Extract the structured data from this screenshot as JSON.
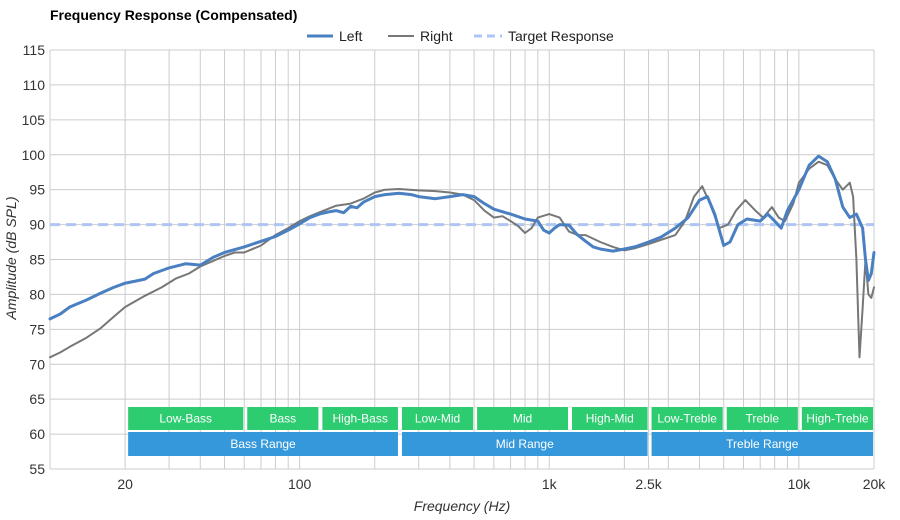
{
  "chart_data": {
    "type": "line",
    "title": "Frequency Response (Compensated)",
    "xlabel": "Frequency (Hz)",
    "ylabel": "Amplitude (dB SPL)",
    "x_scale": "log",
    "xlim": [
      10,
      20000
    ],
    "ylim": [
      55,
      115
    ],
    "y_ticks": [
      55,
      60,
      65,
      70,
      75,
      80,
      85,
      90,
      95,
      100,
      105,
      110,
      115
    ],
    "x_ticks": [
      {
        "value": 20,
        "label": "20"
      },
      {
        "value": 100,
        "label": "100"
      },
      {
        "value": 1000,
        "label": "1k"
      },
      {
        "value": 2500,
        "label": "2.5k"
      },
      {
        "value": 10000,
        "label": "10k"
      },
      {
        "value": 20000,
        "label": "20k"
      }
    ],
    "legend": [
      "Left",
      "Right",
      "Target Response"
    ],
    "colors": {
      "left": "#4a7fc1",
      "right": "#777777",
      "target": "#aec6f5",
      "band_green": "#2ecc71",
      "band_blue": "#3498db",
      "grid": "#cccccc"
    },
    "target_value": 90,
    "series": [
      {
        "name": "Left",
        "points": [
          [
            10,
            76.5
          ],
          [
            11,
            77.2
          ],
          [
            12,
            78.2
          ],
          [
            14,
            79.2
          ],
          [
            16,
            80.2
          ],
          [
            18,
            81.0
          ],
          [
            20,
            81.6
          ],
          [
            22,
            81.9
          ],
          [
            24,
            82.2
          ],
          [
            26,
            83.0
          ],
          [
            30,
            83.8
          ],
          [
            35,
            84.4
          ],
          [
            40,
            84.2
          ],
          [
            45,
            85.3
          ],
          [
            50,
            86.0
          ],
          [
            60,
            86.8
          ],
          [
            70,
            87.6
          ],
          [
            80,
            88.3
          ],
          [
            90,
            89.2
          ],
          [
            100,
            90.1
          ],
          [
            110,
            91.0
          ],
          [
            120,
            91.5
          ],
          [
            130,
            91.8
          ],
          [
            140,
            92.0
          ],
          [
            150,
            91.7
          ],
          [
            160,
            92.6
          ],
          [
            170,
            92.4
          ],
          [
            180,
            93.2
          ],
          [
            200,
            94.0
          ],
          [
            220,
            94.3
          ],
          [
            250,
            94.5
          ],
          [
            280,
            94.3
          ],
          [
            300,
            94.0
          ],
          [
            350,
            93.7
          ],
          [
            400,
            94.0
          ],
          [
            450,
            94.3
          ],
          [
            500,
            94.0
          ],
          [
            550,
            93.0
          ],
          [
            600,
            92.2
          ],
          [
            700,
            91.5
          ],
          [
            800,
            90.8
          ],
          [
            900,
            90.5
          ],
          [
            950,
            89.2
          ],
          [
            1000,
            88.8
          ],
          [
            1050,
            89.5
          ],
          [
            1100,
            90.0
          ],
          [
            1200,
            89.9
          ],
          [
            1300,
            88.5
          ],
          [
            1400,
            87.6
          ],
          [
            1500,
            86.8
          ],
          [
            1600,
            86.5
          ],
          [
            1800,
            86.2
          ],
          [
            2000,
            86.5
          ],
          [
            2200,
            86.8
          ],
          [
            2500,
            87.5
          ],
          [
            2800,
            88.2
          ],
          [
            3200,
            89.5
          ],
          [
            3600,
            91.0
          ],
          [
            4000,
            93.5
          ],
          [
            4300,
            94.0
          ],
          [
            4600,
            91.5
          ],
          [
            5000,
            87.0
          ],
          [
            5300,
            87.5
          ],
          [
            5700,
            90.0
          ],
          [
            6200,
            90.8
          ],
          [
            7000,
            90.5
          ],
          [
            7500,
            91.5
          ],
          [
            8000,
            90.5
          ],
          [
            8500,
            89.5
          ],
          [
            9000,
            92.0
          ],
          [
            10000,
            95.0
          ],
          [
            11000,
            98.5
          ],
          [
            12000,
            99.8
          ],
          [
            13000,
            99.0
          ],
          [
            14000,
            96.5
          ],
          [
            15000,
            92.5
          ],
          [
            16000,
            91.0
          ],
          [
            17000,
            91.5
          ],
          [
            18000,
            89.5
          ],
          [
            18500,
            85.0
          ],
          [
            19000,
            82.0
          ],
          [
            19500,
            83.0
          ],
          [
            20000,
            86.0
          ]
        ]
      },
      {
        "name": "Right",
        "points": [
          [
            10,
            71.0
          ],
          [
            11,
            71.7
          ],
          [
            12,
            72.5
          ],
          [
            14,
            73.8
          ],
          [
            16,
            75.2
          ],
          [
            18,
            76.8
          ],
          [
            20,
            78.2
          ],
          [
            24,
            79.8
          ],
          [
            28,
            81.0
          ],
          [
            32,
            82.3
          ],
          [
            36,
            83.0
          ],
          [
            40,
            84.0
          ],
          [
            45,
            84.8
          ],
          [
            50,
            85.5
          ],
          [
            55,
            86.0
          ],
          [
            60,
            86.0
          ],
          [
            70,
            87.0
          ],
          [
            80,
            88.5
          ],
          [
            90,
            89.5
          ],
          [
            100,
            90.5
          ],
          [
            110,
            91.2
          ],
          [
            125,
            92.0
          ],
          [
            140,
            92.7
          ],
          [
            160,
            93.0
          ],
          [
            180,
            93.7
          ],
          [
            200,
            94.6
          ],
          [
            220,
            95.0
          ],
          [
            250,
            95.1
          ],
          [
            300,
            94.9
          ],
          [
            350,
            94.8
          ],
          [
            400,
            94.6
          ],
          [
            450,
            94.3
          ],
          [
            500,
            93.5
          ],
          [
            550,
            92.0
          ],
          [
            600,
            91.0
          ],
          [
            650,
            91.2
          ],
          [
            700,
            90.5
          ],
          [
            750,
            89.8
          ],
          [
            800,
            88.8
          ],
          [
            850,
            89.5
          ],
          [
            900,
            91.0
          ],
          [
            1000,
            91.5
          ],
          [
            1100,
            91.0
          ],
          [
            1200,
            89.0
          ],
          [
            1300,
            88.5
          ],
          [
            1400,
            88.5
          ],
          [
            1600,
            87.5
          ],
          [
            1800,
            86.8
          ],
          [
            2000,
            86.3
          ],
          [
            2200,
            86.6
          ],
          [
            2500,
            87.2
          ],
          [
            2800,
            87.8
          ],
          [
            3200,
            88.5
          ],
          [
            3500,
            90.5
          ],
          [
            3800,
            94.0
          ],
          [
            4100,
            95.5
          ],
          [
            4400,
            93.0
          ],
          [
            4800,
            89.5
          ],
          [
            5200,
            90.0
          ],
          [
            5600,
            92.0
          ],
          [
            6100,
            93.5
          ],
          [
            6700,
            92.0
          ],
          [
            7200,
            91.0
          ],
          [
            7800,
            92.5
          ],
          [
            8300,
            91.0
          ],
          [
            8800,
            90.5
          ],
          [
            9500,
            93.0
          ],
          [
            10000,
            96.0
          ],
          [
            11000,
            98.0
          ],
          [
            12000,
            99.0
          ],
          [
            13000,
            98.5
          ],
          [
            14000,
            96.5
          ],
          [
            15000,
            95.0
          ],
          [
            16000,
            96.0
          ],
          [
            16500,
            94.0
          ],
          [
            17000,
            85.0
          ],
          [
            17500,
            71.0
          ],
          [
            18000,
            78.0
          ],
          [
            18500,
            85.0
          ],
          [
            19000,
            80.0
          ],
          [
            19500,
            79.5
          ],
          [
            20000,
            81.0
          ]
        ]
      }
    ],
    "bands_top": [
      {
        "label": "Low-Bass",
        "from": 20,
        "to": 60
      },
      {
        "label": "Bass",
        "from": 60,
        "to": 120
      },
      {
        "label": "High-Bass",
        "from": 120,
        "to": 250
      },
      {
        "label": "Low-Mid",
        "from": 250,
        "to": 500
      },
      {
        "label": "Mid",
        "from": 500,
        "to": 1200
      },
      {
        "label": "High-Mid",
        "from": 1200,
        "to": 2500
      },
      {
        "label": "Low-Treble",
        "from": 2500,
        "to": 5000
      },
      {
        "label": "Treble",
        "from": 5000,
        "to": 10000
      },
      {
        "label": "High-Treble",
        "from": 10000,
        "to": 20000
      }
    ],
    "bands_bottom": [
      {
        "label": "Bass Range",
        "from": 20,
        "to": 250
      },
      {
        "label": "Mid Range",
        "from": 250,
        "to": 2500
      },
      {
        "label": "Treble Range",
        "from": 2500,
        "to": 20000
      }
    ]
  }
}
